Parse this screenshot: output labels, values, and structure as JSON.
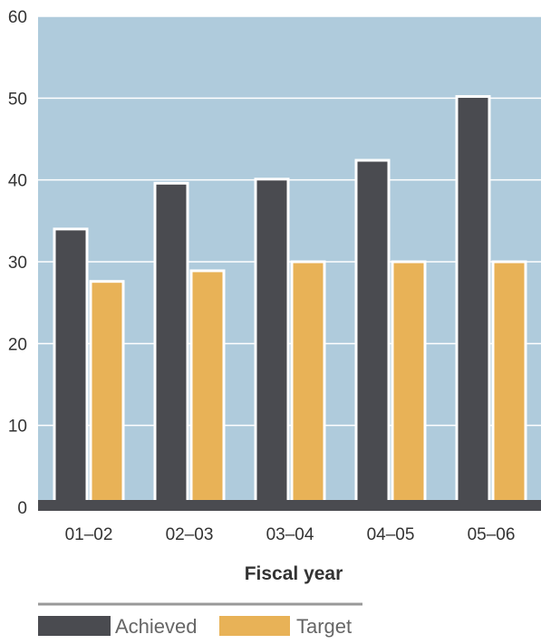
{
  "chart_data": {
    "type": "bar",
    "categories": [
      "01–02",
      "02–03",
      "03–04",
      "04–05",
      "05–06"
    ],
    "series": [
      {
        "name": "Achieved",
        "values": [
          34,
          39.6,
          40.1,
          42.4,
          50.2
        ]
      },
      {
        "name": "Target",
        "values": [
          27.6,
          28.9,
          30,
          30,
          30
        ]
      }
    ],
    "title": "",
    "xlabel": "Fiscal year",
    "ylabel": "",
    "ylim": [
      0,
      60
    ],
    "yticks": [
      0,
      10,
      20,
      30,
      40,
      50,
      60
    ],
    "grid": true,
    "legend_position": "bottom-left"
  },
  "colors": {
    "plot_background": "#afcbdc",
    "achieved": "#4a4b50",
    "target": "#e8b257",
    "baseline": "#4a4b50",
    "gridline": "#ffffff",
    "legend_rule": "#999999"
  }
}
